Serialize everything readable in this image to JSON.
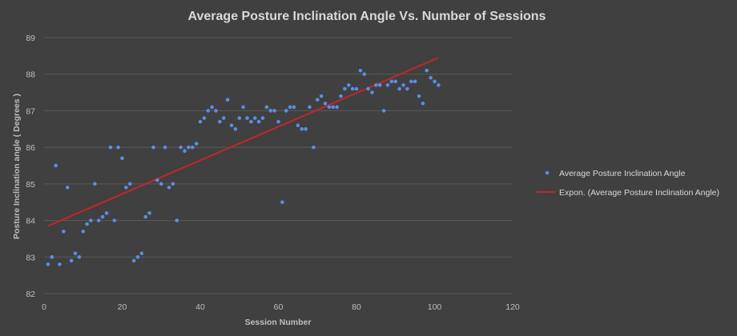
{
  "chart_data": {
    "type": "scatter",
    "title": "Average Posture Inclination Angle Vs. Number of Sessions",
    "xlabel": "Session Number",
    "ylabel": "Posture Inclination angle ( Degrees )",
    "xlim": [
      0,
      120
    ],
    "ylim": [
      82,
      89
    ],
    "x_ticks": [
      "0",
      "20",
      "40",
      "60",
      "80",
      "100",
      "120"
    ],
    "y_ticks": [
      "82",
      "83",
      "84",
      "85",
      "86",
      "87",
      "88",
      "89"
    ],
    "x_tick_values": [
      0,
      20,
      40,
      60,
      80,
      100,
      120
    ],
    "y_tick_values": [
      82,
      83,
      84,
      85,
      86,
      87,
      88,
      89
    ],
    "grid": "horizontal",
    "legend_position": "right",
    "colors": {
      "points": "#5b8de0",
      "trendline": "#c0272d"
    },
    "series": [
      {
        "name": "Average Posture Inclination Angle",
        "x": [
          1,
          2,
          3,
          4,
          5,
          6,
          7,
          8,
          9,
          10,
          11,
          12,
          13,
          14,
          15,
          16,
          17,
          18,
          19,
          20,
          21,
          22,
          23,
          24,
          25,
          26,
          27,
          28,
          29,
          30,
          31,
          32,
          33,
          34,
          35,
          36,
          37,
          38,
          39,
          40,
          41,
          42,
          43,
          44,
          45,
          46,
          47,
          48,
          49,
          50,
          51,
          52,
          53,
          54,
          55,
          56,
          57,
          58,
          59,
          60,
          61,
          62,
          63,
          64,
          65,
          66,
          67,
          68,
          69,
          70,
          71,
          72,
          73,
          74,
          75,
          76,
          77,
          78,
          79,
          80,
          81,
          82,
          83,
          84,
          85,
          86,
          87,
          88,
          89,
          90,
          91,
          92,
          93,
          94,
          95,
          96,
          97,
          98,
          99,
          100,
          101
        ],
        "y": [
          82.8,
          83.0,
          85.5,
          82.8,
          83.7,
          84.9,
          82.9,
          83.1,
          83.0,
          83.7,
          83.9,
          84.0,
          85.0,
          84.0,
          84.1,
          84.2,
          86.0,
          84.0,
          86.0,
          85.7,
          84.9,
          85.0,
          82.9,
          83.0,
          83.1,
          84.1,
          84.2,
          86.0,
          85.1,
          85.0,
          86.0,
          84.9,
          85.0,
          84.0,
          86.0,
          85.9,
          86.0,
          86.0,
          86.1,
          86.7,
          86.8,
          87.0,
          87.1,
          87.0,
          86.7,
          86.8,
          87.3,
          86.6,
          86.5,
          86.8,
          87.1,
          86.8,
          86.7,
          86.8,
          86.7,
          86.8,
          87.1,
          87.0,
          87.0,
          86.7,
          84.5,
          87.0,
          87.1,
          87.1,
          86.6,
          86.5,
          86.5,
          87.1,
          86.0,
          87.3,
          87.4,
          87.2,
          87.1,
          87.1,
          87.1,
          87.4,
          87.6,
          87.7,
          87.6,
          87.6,
          88.1,
          88.0,
          87.6,
          87.5,
          87.7,
          87.7,
          87.0,
          87.7,
          87.8,
          87.8,
          87.6,
          87.7,
          87.6,
          87.8,
          87.8,
          87.4,
          87.2,
          88.1,
          87.9,
          87.8,
          87.7
        ]
      },
      {
        "name": "Expon. (Average Posture Inclination Angle)",
        "type": "trendline",
        "x": [
          1,
          101
        ],
        "y": [
          83.85,
          88.45
        ]
      }
    ]
  }
}
